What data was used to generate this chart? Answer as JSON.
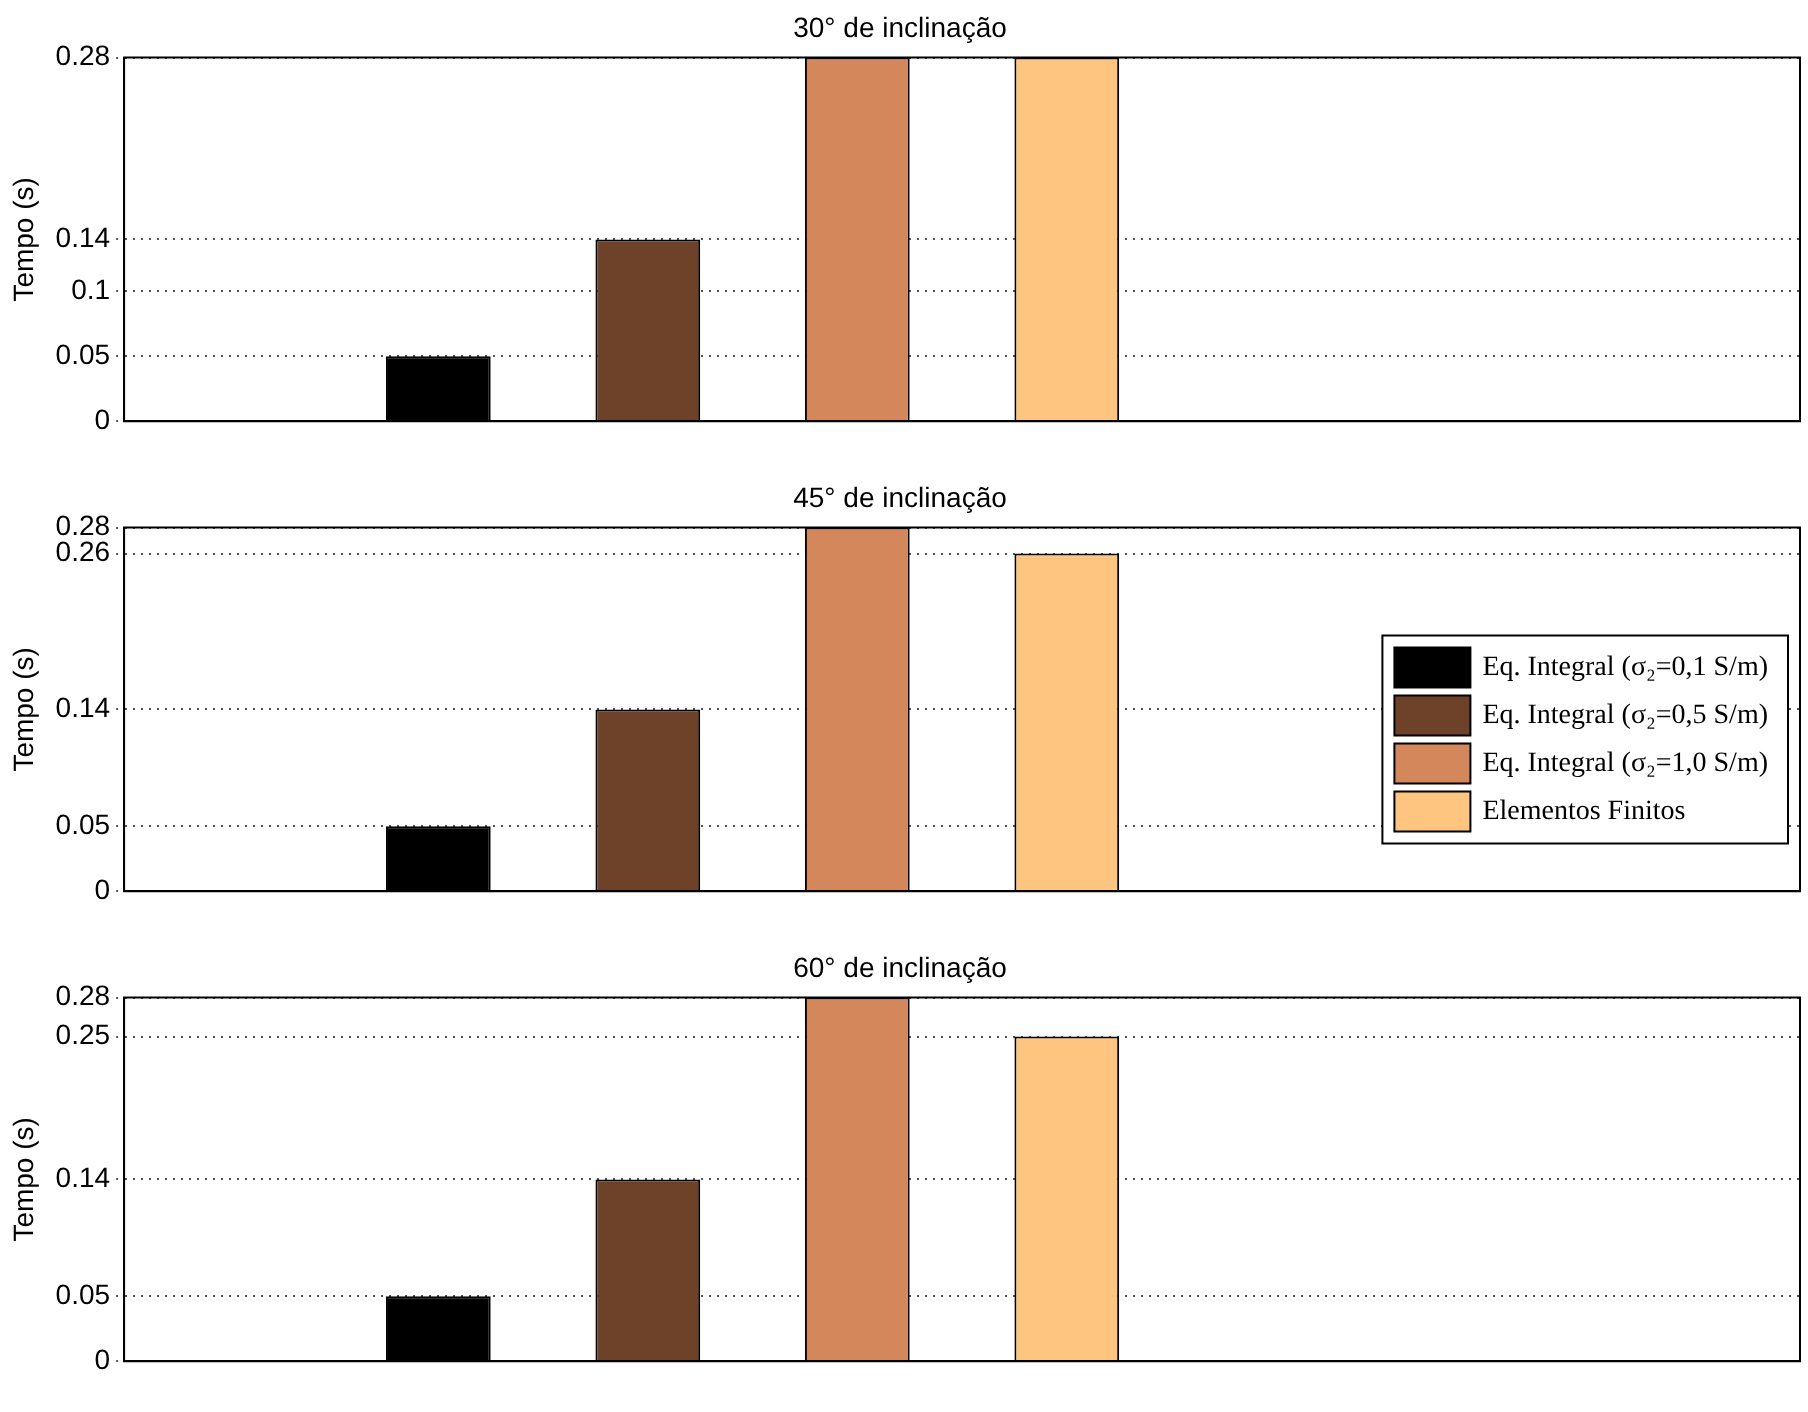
{
  "chart_data": [
    {
      "type": "bar",
      "title": "30° de inclinação",
      "ylabel": "Tempo (s)",
      "categories": [
        null,
        null,
        null,
        null,
        null,
        null,
        null,
        null
      ],
      "ylim": [
        0,
        0.28
      ],
      "yticks": [
        0,
        0.05,
        0.1,
        0.14,
        0.28
      ],
      "grid": "y",
      "legend": false,
      "series": [
        {
          "color": "#000000",
          "values": [
            null,
            0.05,
            null,
            null,
            null,
            null,
            null,
            null
          ]
        },
        {
          "color": "#6e4229",
          "values": [
            null,
            null,
            0.14,
            null,
            null,
            null,
            null,
            null
          ]
        },
        {
          "color": "#d4875a",
          "values": [
            null,
            null,
            null,
            0.28,
            null,
            null,
            null,
            null
          ]
        },
        {
          "color": "#fdc57f",
          "values": [
            null,
            null,
            null,
            null,
            0.28,
            null,
            null,
            null
          ]
        }
      ]
    },
    {
      "type": "bar",
      "title": "45° de inclinação",
      "ylabel": "Tempo (s)",
      "categories": [
        null,
        null,
        null,
        null,
        null,
        null,
        null,
        null
      ],
      "ylim": [
        0,
        0.28
      ],
      "yticks": [
        0,
        0.05,
        0.14,
        0.26,
        0.28
      ],
      "grid": "y",
      "legend": "right",
      "series": [
        {
          "name": "Eq. Integral (σ₂=0,1 S/m)",
          "color": "#000000",
          "values": [
            null,
            0.05,
            null,
            null,
            null,
            null,
            null,
            null
          ]
        },
        {
          "name": "Eq. Integral (σ₂=0,5 S/m)",
          "color": "#6e4229",
          "values": [
            null,
            null,
            0.14,
            null,
            null,
            null,
            null,
            null
          ]
        },
        {
          "name": "Eq. Integral (σ₂=1,0 S/m)",
          "color": "#d4875a",
          "values": [
            null,
            null,
            null,
            0.28,
            null,
            null,
            null,
            null
          ]
        },
        {
          "name": "Elementos Finitos",
          "color": "#fdc57f",
          "values": [
            null,
            null,
            null,
            null,
            0.26,
            null,
            null,
            null
          ]
        }
      ]
    },
    {
      "type": "bar",
      "title": "60° de inclinação",
      "ylabel": "Tempo (s)",
      "categories": [
        null,
        null,
        null,
        null,
        null,
        null,
        null,
        null
      ],
      "ylim": [
        0,
        0.28
      ],
      "yticks": [
        0,
        0.05,
        0.14,
        0.25,
        0.28
      ],
      "grid": "y",
      "legend": false,
      "series": [
        {
          "color": "#000000",
          "values": [
            null,
            0.05,
            null,
            null,
            null,
            null,
            null,
            null
          ]
        },
        {
          "color": "#6e4229",
          "values": [
            null,
            null,
            0.14,
            null,
            null,
            null,
            null,
            null
          ]
        },
        {
          "color": "#d4875a",
          "values": [
            null,
            null,
            null,
            0.28,
            null,
            null,
            null,
            null
          ]
        },
        {
          "color": "#fdc57f",
          "values": [
            null,
            null,
            null,
            null,
            0.25,
            null,
            null,
            null
          ]
        }
      ]
    }
  ]
}
